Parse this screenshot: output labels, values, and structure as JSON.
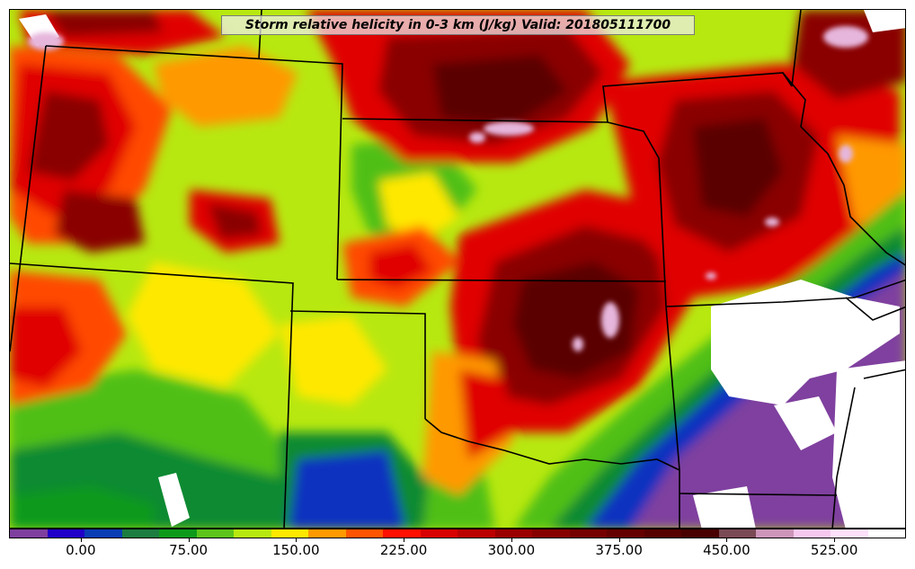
{
  "title": "Storm relative helicity in 0-3 km (J/kg) Valid: 201805111700",
  "colorbar": {
    "colors": [
      "#7f3f9f",
      "#2000c8",
      "#0a3cb4",
      "#1b7d40",
      "#0d9a1a",
      "#5cc41a",
      "#b7e810",
      "#ffe800",
      "#ff9900",
      "#ff5500",
      "#ff1000",
      "#d80000",
      "#bb0000",
      "#9b0000",
      "#870000",
      "#760000",
      "#650000",
      "#560000",
      "#480000",
      "#7a4a55",
      "#cc95b9",
      "#f7c8ef",
      "#fde0fa",
      "#ffffff"
    ],
    "tick_labels": [
      "0.00",
      "75.00",
      "150.00",
      "225.00",
      "300.00",
      "375.00",
      "450.00",
      "525.00"
    ],
    "tick_values": [
      0,
      75,
      150,
      225,
      300,
      375,
      450,
      525
    ],
    "min": -50,
    "max": 575
  },
  "field_colors": {
    "dark_maroon": "#5a0000",
    "maroon": "#8a0000",
    "red": "#e00000",
    "orange_red": "#ff4a00",
    "orange": "#ff9900",
    "yellow": "#ffe800",
    "yellow_green": "#b7e810",
    "green": "#4fbf18",
    "dark_green": "#0d8a30",
    "blue": "#1030c0",
    "purple": "#7f3f9f",
    "pink": "#e6b6dc",
    "white": "#ffffff"
  }
}
